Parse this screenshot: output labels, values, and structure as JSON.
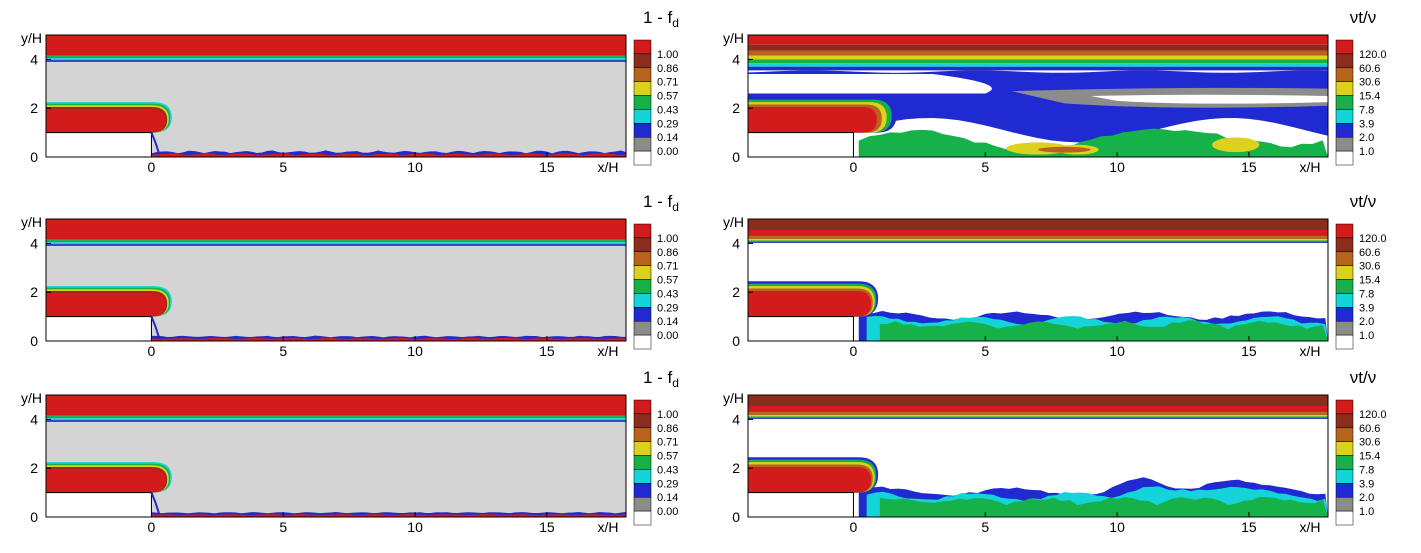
{
  "chart_data": [
    {
      "type": "contour",
      "id": "fd-row1",
      "xlabel": "x/H",
      "ylabel": "y/H",
      "xlim": [
        -4,
        18
      ],
      "ylim": [
        0,
        5
      ],
      "x_ticks": [
        "0",
        "5",
        "10",
        "15"
      ],
      "y_ticks": [
        "0",
        "2",
        "4"
      ],
      "colorbar": {
        "title": "1 - f",
        "title_sub": "d",
        "levels": [
          "1.00",
          "0.86",
          "0.71",
          "0.57",
          "0.43",
          "0.29",
          "0.14",
          "0.00"
        ],
        "colors": [
          "#d41b1b",
          "#8c2c1e",
          "#b9621d",
          "#dcd21e",
          "#17b14a",
          "#14d4d9",
          "#1f2bd1",
          "#8c8c8c",
          "#ffffff"
        ]
      },
      "field": "1-fd",
      "edge_amp": 1.0
    },
    {
      "type": "contour",
      "id": "fd-row2",
      "xlabel": "x/H",
      "ylabel": "y/H",
      "xlim": [
        -4,
        18
      ],
      "ylim": [
        0,
        5
      ],
      "x_ticks": [
        "0",
        "5",
        "10",
        "15"
      ],
      "y_ticks": [
        "0",
        "2",
        "4"
      ],
      "colorbar": {
        "title": "1 - f",
        "title_sub": "d",
        "levels": [
          "1.00",
          "0.86",
          "0.71",
          "0.57",
          "0.43",
          "0.29",
          "0.14",
          "0.00"
        ],
        "colors": [
          "#d41b1b",
          "#8c2c1e",
          "#b9621d",
          "#dcd21e",
          "#17b14a",
          "#14d4d9",
          "#1f2bd1",
          "#8c8c8c",
          "#ffffff"
        ]
      },
      "field": "1-fd",
      "edge_amp": 0.6
    },
    {
      "type": "contour",
      "id": "fd-row3",
      "xlabel": "x/H",
      "ylabel": "y/H",
      "xlim": [
        -4,
        18
      ],
      "ylim": [
        0,
        5
      ],
      "x_ticks": [
        "0",
        "5",
        "10",
        "15"
      ],
      "y_ticks": [
        "0",
        "2",
        "4"
      ],
      "colorbar": {
        "title": "1 - f",
        "title_sub": "d",
        "levels": [
          "1.00",
          "0.86",
          "0.71",
          "0.57",
          "0.43",
          "0.29",
          "0.14",
          "0.00"
        ],
        "colors": [
          "#d41b1b",
          "#8c2c1e",
          "#b9621d",
          "#dcd21e",
          "#17b14a",
          "#14d4d9",
          "#1f2bd1",
          "#8c8c8c",
          "#ffffff"
        ]
      },
      "field": "1-fd",
      "edge_amp": 0.5
    },
    {
      "type": "contour",
      "id": "nut-row1",
      "xlabel": "x/H",
      "ylabel": "y/H",
      "xlim": [
        -4,
        18
      ],
      "ylim": [
        0,
        5
      ],
      "x_ticks": [
        "0",
        "5",
        "10",
        "15"
      ],
      "y_ticks": [
        "0",
        "2",
        "4"
      ],
      "colorbar": {
        "title": "νt/ν",
        "levels": [
          "120.0",
          "60.6",
          "30.6",
          "15.4",
          "7.8",
          "3.9",
          "2.0",
          "1.0"
        ],
        "colors": [
          "#d41b1b",
          "#8c2c1e",
          "#b9621d",
          "#dcd21e",
          "#17b14a",
          "#14d4d9",
          "#1f2bd1",
          "#8c8c8c",
          "#ffffff"
        ]
      },
      "field": "nut",
      "variant": "rans-like"
    },
    {
      "type": "contour",
      "id": "nut-row2",
      "xlabel": "x/H",
      "ylabel": "y/H",
      "xlim": [
        -4,
        18
      ],
      "ylim": [
        0,
        5
      ],
      "x_ticks": [
        "0",
        "5",
        "10",
        "15"
      ],
      "y_ticks": [
        "0",
        "2",
        "4"
      ],
      "colorbar": {
        "title": "νt/ν",
        "levels": [
          "120.0",
          "60.6",
          "30.6",
          "15.4",
          "7.8",
          "3.9",
          "2.0",
          "1.0"
        ],
        "colors": [
          "#d41b1b",
          "#8c2c1e",
          "#b9621d",
          "#dcd21e",
          "#17b14a",
          "#14d4d9",
          "#1f2bd1",
          "#8c8c8c",
          "#ffffff"
        ]
      },
      "field": "nut",
      "variant": "les-thin"
    },
    {
      "type": "contour",
      "id": "nut-row3",
      "xlabel": "x/H",
      "ylabel": "y/H",
      "xlim": [
        -4,
        18
      ],
      "ylim": [
        0,
        5
      ],
      "x_ticks": [
        "0",
        "5",
        "10",
        "15"
      ],
      "y_ticks": [
        "0",
        "2",
        "4"
      ],
      "colorbar": {
        "title": "νt/ν",
        "levels": [
          "120.0",
          "60.6",
          "30.6",
          "15.4",
          "7.8",
          "3.9",
          "2.0",
          "1.0"
        ],
        "colors": [
          "#d41b1b",
          "#8c2c1e",
          "#b9621d",
          "#dcd21e",
          "#17b14a",
          "#14d4d9",
          "#1f2bd1",
          "#8c8c8c",
          "#ffffff"
        ]
      },
      "field": "nut",
      "variant": "les-wavy"
    }
  ]
}
